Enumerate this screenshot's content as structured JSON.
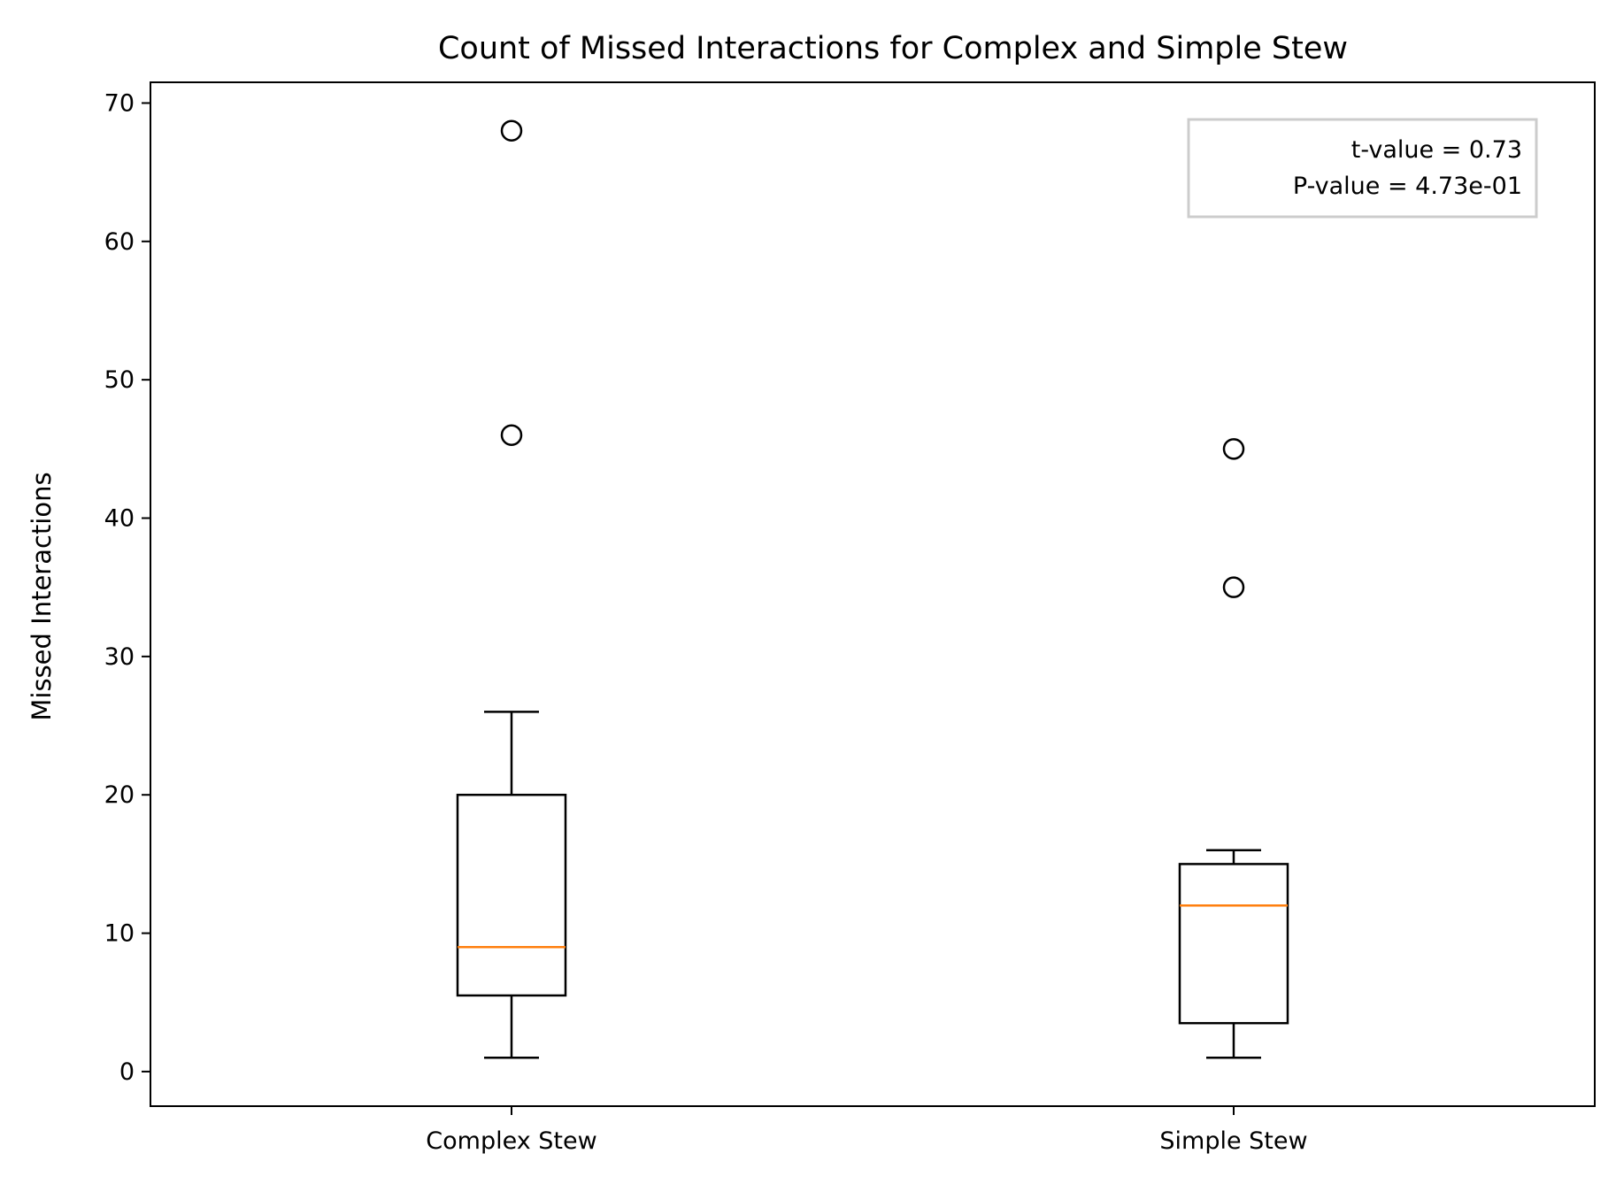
{
  "chart_data": {
    "type": "box",
    "title": "Count of Missed Interactions for Complex and Simple Stew",
    "xlabel": "",
    "ylabel": "Missed Interactions",
    "ylim": [
      -2.5,
      71.5
    ],
    "yticks": [
      0,
      10,
      20,
      30,
      40,
      50,
      60,
      70
    ],
    "grid": false,
    "categories": [
      "Complex Stew",
      "Simple Stew"
    ],
    "boxes": [
      {
        "name": "Complex Stew",
        "whisker_low": 1,
        "q1": 5.5,
        "median": 9,
        "q3": 20,
        "whisker_high": 26,
        "outliers": [
          46,
          68
        ]
      },
      {
        "name": "Simple Stew",
        "whisker_low": 1,
        "q1": 3.5,
        "median": 12,
        "q3": 15,
        "whisker_high": 16,
        "outliers": [
          35,
          45
        ]
      }
    ],
    "annotation": {
      "lines": [
        "t-value = 0.73",
        "P-value = 4.73e-01"
      ],
      "placement": "top-right"
    },
    "colors": {
      "median": "#ff7f0e",
      "box": "#000000",
      "annotation_border": "#cccccc"
    }
  }
}
